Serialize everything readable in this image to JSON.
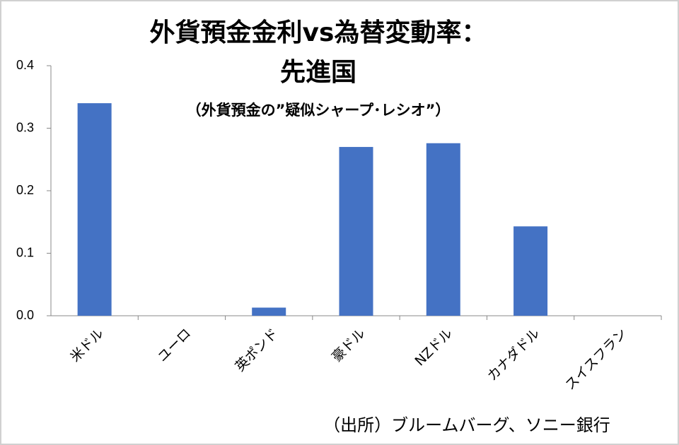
{
  "chart_data": {
    "type": "bar",
    "title": [
      "外貨預金金利vs為替変動率：",
      "先進国"
    ],
    "subtitle": "（外貨預金の”疑似シャープ･レシオ”）",
    "source": "（出所）ブルームバーグ、ソニー銀行",
    "categories": [
      "米ドル",
      "ユーロ",
      "英ポンド",
      "豪ドル",
      "NZドル",
      "カナダドル",
      "スイスフラン"
    ],
    "values": [
      0.34,
      0,
      0.013,
      0.27,
      0.276,
      0.143,
      0
    ],
    "color": "#4472c4",
    "ylim": [
      0,
      0.4
    ],
    "yticks": [
      {
        "value": 0,
        "label": "0.0"
      },
      0.1,
      0.2,
      0.3,
      0.4
    ],
    "grid": false
  }
}
